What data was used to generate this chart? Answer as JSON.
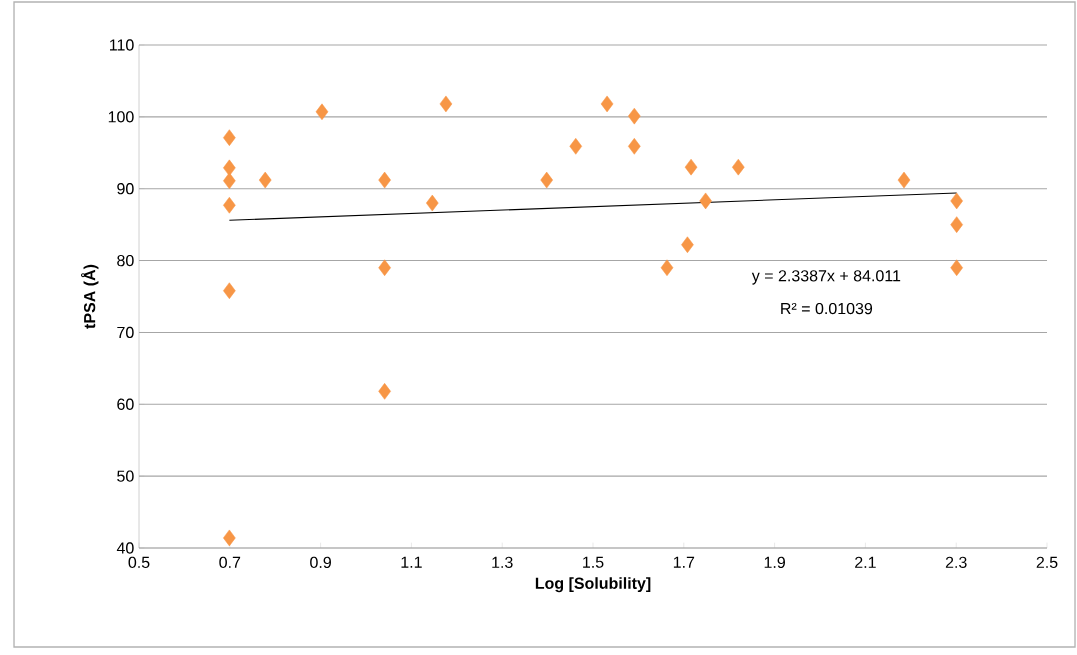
{
  "chart_data": {
    "type": "scatter",
    "xlabel": "Log [Solubility]",
    "ylabel": "tPSA (Å)",
    "xlim": [
      0.5,
      2.5
    ],
    "ylim": [
      40,
      110
    ],
    "xticks": [
      0.5,
      0.7,
      0.9,
      1.1,
      1.3,
      1.5,
      1.7,
      1.9,
      2.1,
      2.3,
      2.5
    ],
    "yticks": [
      40,
      50,
      60,
      70,
      80,
      90,
      100,
      110
    ],
    "grid": "y",
    "marker": "diamond",
    "series": [
      {
        "color": "#f79646",
        "x": [
          0.699,
          0.699,
          0.699,
          0.699,
          0.699,
          0.699,
          0.778,
          0.903,
          1.041,
          1.041,
          1.041,
          1.146,
          1.176,
          1.398,
          1.462,
          1.531,
          1.591,
          1.591,
          1.663,
          1.708,
          1.716,
          1.748,
          1.82,
          2.185,
          2.301,
          2.301,
          2.301
        ],
        "values": [
          97.1,
          92.9,
          91.1,
          87.7,
          75.8,
          41.4,
          91.2,
          100.7,
          91.2,
          79.0,
          61.8,
          88.0,
          101.8,
          91.2,
          95.9,
          101.8,
          100.1,
          95.9,
          79.0,
          82.2,
          93.0,
          88.3,
          93.0,
          91.2,
          88.3,
          85.0,
          79.0
        ]
      },
      {
        "type": "line",
        "color": "#000000",
        "marker": "none",
        "x": [
          0.699,
          2.301
        ],
        "values": [
          85.6,
          89.4
        ]
      }
    ],
    "annotations": [
      "y = 2.3387x + 84.011",
      "R² = 0.01039"
    ]
  }
}
